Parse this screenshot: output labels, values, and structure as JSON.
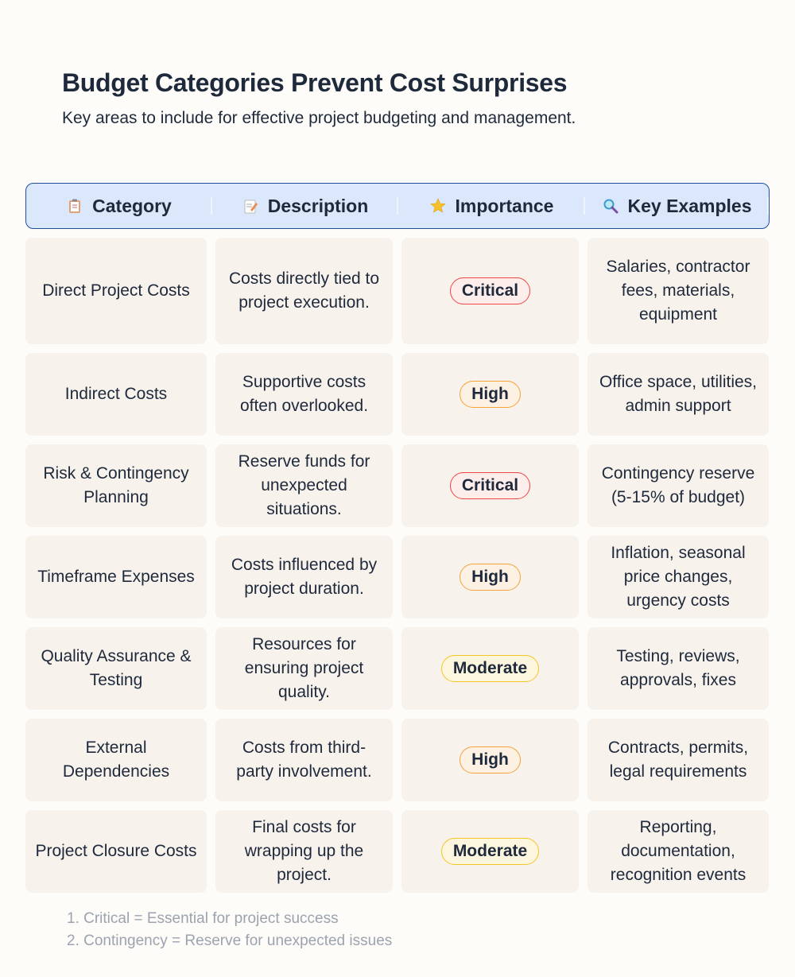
{
  "header": {
    "title": "Budget Categories Prevent Cost Surprises",
    "subtitle": "Key areas to include for effective project budgeting and management."
  },
  "table": {
    "columns": [
      "Category",
      "Description",
      "Importance",
      "Key Examples"
    ],
    "rows": [
      [
        "Direct Project Costs",
        "Costs directly tied to project execution.",
        "Critical",
        "Salaries, contractor fees, materials, equipment"
      ],
      [
        "Indirect Costs",
        "Supportive costs often overlooked.",
        "High",
        "Office space, utilities, admin support"
      ],
      [
        "Risk & Contingency Planning",
        "Reserve funds for unexpected situations.",
        "Critical",
        "Contingency reserve (5-15% of budget)"
      ],
      [
        "Timeframe Expenses",
        "Costs influenced by project duration.",
        "High",
        "Inflation, seasonal price changes, urgency costs"
      ],
      [
        "Quality Assurance & Testing",
        "Resources for ensuring project quality.",
        "Moderate",
        "Testing, reviews, approvals, fixes"
      ],
      [
        "External Dependencies",
        "Costs from third-party involvement.",
        "High",
        "Contracts, permits, legal requirements"
      ],
      [
        "Project Closure Costs",
        "Final costs for wrapping up the project.",
        "Moderate",
        "Reporting, documentation, recognition events"
      ]
    ]
  },
  "footnotes": [
    "1. Critical = Essential for project success",
    "2. Contingency = Reserve for unexpected issues"
  ]
}
